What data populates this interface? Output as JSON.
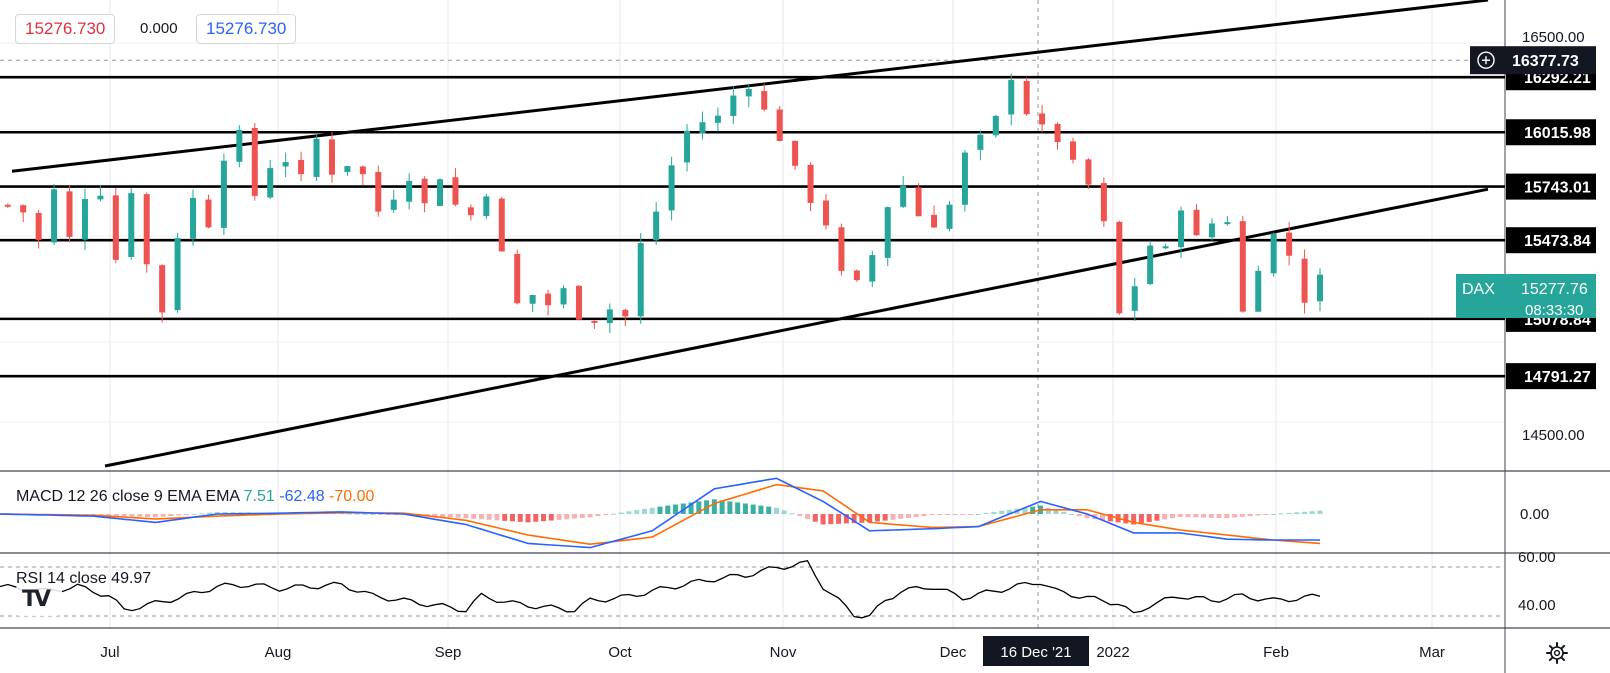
{
  "header": {
    "sell_price": "15276.730",
    "spread": "0.000",
    "buy_price": "15276.730"
  },
  "chart_data": [
    {
      "type": "candlestick",
      "series_name": "DAX",
      "last_price": "15277.76",
      "countdown": "08:33:30",
      "crosshair_price": "16377.73",
      "crosshair_date": "16 Dec '21",
      "ylim": [
        14320,
        16680
      ],
      "price_ticks": [
        16500,
        14500
      ],
      "price_tick_labels": [
        "16500.00",
        "14500.00"
      ],
      "x_labels": [
        "Jul",
        "Aug",
        "Sep",
        "Oct",
        "Nov",
        "Dec",
        "2022",
        "Feb",
        "Mar"
      ],
      "support_resistance_levels": [
        {
          "value": 16292.21,
          "label": "16292.21"
        },
        {
          "value": 16015.98,
          "label": "16015.98"
        },
        {
          "value": 15743.01,
          "label": "15743.01"
        },
        {
          "value": 15473.84,
          "label": "15473.84"
        },
        {
          "value": 15078.84,
          "label": "15078.84"
        },
        {
          "value": 14791.27,
          "label": "14791.27"
        }
      ],
      "trendlines": [
        {
          "from": [
            0.8,
            15820
          ],
          "to": [
            30.0,
            16680
          ]
        },
        {
          "from": [
            2.0,
            14340
          ],
          "to": [
            29.6,
            15730
          ]
        }
      ],
      "bullish_color": "#26a69a",
      "bearish_color": "#ef5350",
      "anchors": [
        [
          0,
          15650
        ],
        [
          1.5,
          15600
        ],
        [
          2,
          15470
        ],
        [
          3,
          15720
        ],
        [
          4,
          15480
        ],
        [
          5,
          15700
        ],
        [
          5.5,
          15480
        ],
        [
          6,
          15720
        ],
        [
          7,
          15380
        ],
        [
          8,
          15730
        ],
        [
          9,
          15350
        ],
        [
          10,
          15120
        ],
        [
          11,
          15500
        ],
        [
          12,
          15680
        ],
        [
          13,
          15560
        ],
        [
          14,
          15900
        ],
        [
          15,
          16000
        ],
        [
          16,
          15700
        ],
        [
          17,
          15850
        ],
        [
          18,
          15880
        ],
        [
          19,
          15780
        ],
        [
          20,
          15980
        ],
        [
          21,
          15820
        ],
        [
          22,
          15860
        ],
        [
          23,
          15800
        ],
        [
          24,
          15620
        ],
        [
          25,
          15700
        ],
        [
          26,
          15800
        ],
        [
          27,
          15650
        ],
        [
          28,
          15800
        ],
        [
          29,
          15650
        ],
        [
          30,
          15600
        ],
        [
          31,
          15720
        ],
        [
          32,
          15400
        ],
        [
          33,
          15150
        ],
        [
          34,
          15200
        ],
        [
          35,
          15150
        ],
        [
          36,
          15220
        ],
        [
          37,
          15100
        ],
        [
          38,
          15080
        ],
        [
          39,
          15130
        ],
        [
          40,
          15090
        ],
        [
          41,
          15450
        ],
        [
          42,
          15620
        ],
        [
          43,
          15850
        ],
        [
          44,
          16020
        ],
        [
          45,
          16070
        ],
        [
          46,
          16090
        ],
        [
          47,
          16200
        ],
        [
          48,
          16260
        ],
        [
          49,
          16120
        ],
        [
          50,
          15990
        ],
        [
          51,
          15820
        ],
        [
          52,
          15680
        ],
        [
          53,
          15560
        ],
        [
          54,
          15300
        ],
        [
          55,
          15250
        ],
        [
          56,
          15400
        ],
        [
          57,
          15650
        ],
        [
          58,
          15750
        ],
        [
          59,
          15600
        ],
        [
          60,
          15560
        ],
        [
          61,
          15650
        ],
        [
          62,
          15900
        ],
        [
          63,
          15980
        ],
        [
          64,
          16080
        ],
        [
          65,
          16300
        ],
        [
          66,
          16120
        ],
        [
          67,
          16030
        ],
        [
          68,
          15980
        ],
        [
          69,
          15850
        ],
        [
          70,
          15750
        ],
        [
          71,
          15550
        ],
        [
          72,
          15100
        ],
        [
          73,
          15250
        ],
        [
          74,
          15450
        ],
        [
          75,
          15420
        ],
        [
          76,
          15650
        ],
        [
          77,
          15480
        ],
        [
          78,
          15560
        ],
        [
          79,
          15580
        ],
        [
          80,
          15110
        ],
        [
          81,
          15350
        ],
        [
          82,
          15500
        ],
        [
          83,
          15400
        ],
        [
          84,
          15180
        ],
        [
          85,
          15280
        ]
      ]
    },
    {
      "type": "macd",
      "label": "MACD 12 26 close 9 EMA EMA",
      "histogram_value": "7.51",
      "macd_value": "-62.48",
      "signal_value": "-70.00",
      "zero_label": "0.00",
      "macd_color": "#2962ff",
      "signal_color": "#ff6d00",
      "hist_up_color": "#26a69a",
      "hist_down_color": "#ef5350",
      "macd": [
        [
          0,
          0
        ],
        [
          6,
          -5
        ],
        [
          10,
          -20
        ],
        [
          14,
          0
        ],
        [
          18,
          2
        ],
        [
          22,
          5
        ],
        [
          26,
          0
        ],
        [
          30,
          -25
        ],
        [
          34,
          -70
        ],
        [
          38,
          -80
        ],
        [
          42,
          -40
        ],
        [
          46,
          60
        ],
        [
          50,
          85
        ],
        [
          53,
          30
        ],
        [
          56,
          -40
        ],
        [
          60,
          -35
        ],
        [
          63,
          -30
        ],
        [
          67,
          30
        ],
        [
          70,
          0
        ],
        [
          73,
          -45
        ],
        [
          76,
          -45
        ],
        [
          79,
          -60
        ],
        [
          82,
          -62
        ],
        [
          85,
          -62
        ]
      ],
      "signal": [
        [
          0,
          0
        ],
        [
          6,
          -3
        ],
        [
          10,
          -12
        ],
        [
          14,
          -5
        ],
        [
          18,
          0
        ],
        [
          22,
          3
        ],
        [
          26,
          2
        ],
        [
          30,
          -15
        ],
        [
          34,
          -50
        ],
        [
          38,
          -72
        ],
        [
          42,
          -55
        ],
        [
          46,
          25
        ],
        [
          50,
          70
        ],
        [
          53,
          55
        ],
        [
          56,
          -20
        ],
        [
          60,
          -32
        ],
        [
          63,
          -30
        ],
        [
          67,
          10
        ],
        [
          70,
          10
        ],
        [
          73,
          -20
        ],
        [
          76,
          -38
        ],
        [
          79,
          -50
        ],
        [
          82,
          -62
        ],
        [
          85,
          -70
        ]
      ]
    },
    {
      "type": "rsi",
      "label": "RSI 14 close",
      "value": "49.97",
      "line_color": "#000000",
      "tick_labels": [
        "60.00",
        "40.00"
      ],
      "values": [
        [
          0,
          60
        ],
        [
          3,
          55
        ],
        [
          5,
          60
        ],
        [
          7,
          50
        ],
        [
          8,
          35
        ],
        [
          10,
          42
        ],
        [
          12,
          50
        ],
        [
          14,
          60
        ],
        [
          16,
          62
        ],
        [
          18,
          58
        ],
        [
          20,
          60
        ],
        [
          22,
          62
        ],
        [
          24,
          50
        ],
        [
          26,
          45
        ],
        [
          28,
          40
        ],
        [
          30,
          35
        ],
        [
          31,
          50
        ],
        [
          33,
          42
        ],
        [
          35,
          38
        ],
        [
          37,
          35
        ],
        [
          38,
          45
        ],
        [
          40,
          48
        ],
        [
          42,
          55
        ],
        [
          44,
          62
        ],
        [
          46,
          68
        ],
        [
          48,
          72
        ],
        [
          50,
          80
        ],
        [
          52,
          85
        ],
        [
          53,
          60
        ],
        [
          54,
          45
        ],
        [
          55,
          30
        ],
        [
          56,
          28
        ],
        [
          57,
          45
        ],
        [
          58,
          55
        ],
        [
          60,
          60
        ],
        [
          62,
          48
        ],
        [
          64,
          55
        ],
        [
          66,
          62
        ],
        [
          67,
          65
        ],
        [
          68,
          55
        ],
        [
          70,
          48
        ],
        [
          72,
          42
        ],
        [
          73,
          30
        ],
        [
          74,
          40
        ],
        [
          76,
          50
        ],
        [
          78,
          45
        ],
        [
          80,
          50
        ],
        [
          82,
          45
        ],
        [
          84,
          48
        ],
        [
          85,
          50
        ]
      ]
    }
  ]
}
